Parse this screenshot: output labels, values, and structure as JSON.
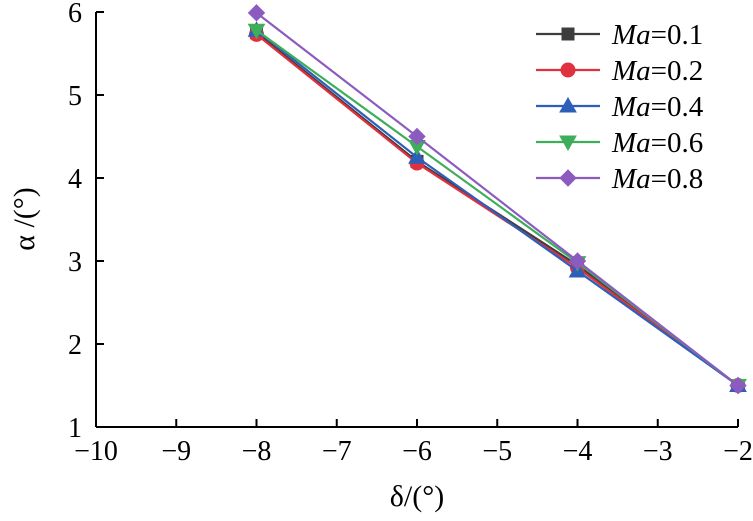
{
  "chart_data": {
    "type": "line",
    "xlabel": "δ/(°)",
    "ylabel": "α /(°)",
    "xlim": [
      -10,
      -2
    ],
    "ylim": [
      1,
      6
    ],
    "xticks": [
      "−10",
      "−9",
      "−8",
      "−7",
      "−6",
      "−5",
      "−4",
      "−3",
      "−2"
    ],
    "yticks": [
      "1",
      "2",
      "3",
      "4",
      "5",
      "6"
    ],
    "grid": false,
    "legend_position": "top-right",
    "x": [
      -8,
      -6,
      -4,
      -2
    ],
    "series": [
      {
        "name_italic": "Ma",
        "name_rest": "=0.1",
        "color": "#3d3d3d",
        "marker": "square",
        "values": [
          5.75,
          4.2,
          2.95,
          1.5
        ]
      },
      {
        "name_italic": "Ma",
        "name_rest": "=0.2",
        "color": "#e0313f",
        "marker": "circle",
        "values": [
          5.73,
          4.18,
          2.92,
          1.5
        ]
      },
      {
        "name_italic": "Ma",
        "name_rest": "=0.4",
        "color": "#2e5fb8",
        "marker": "triangle-up",
        "values": [
          5.78,
          4.25,
          2.88,
          1.5
        ]
      },
      {
        "name_italic": "Ma",
        "name_rest": "=0.6",
        "color": "#3fae5a",
        "marker": "triangle-down",
        "values": [
          5.78,
          4.38,
          2.98,
          1.5
        ]
      },
      {
        "name_italic": "Ma",
        "name_rest": "=0.8",
        "color": "#8c5bc0",
        "marker": "diamond",
        "values": [
          5.99,
          4.5,
          3.0,
          1.5
        ]
      }
    ]
  }
}
